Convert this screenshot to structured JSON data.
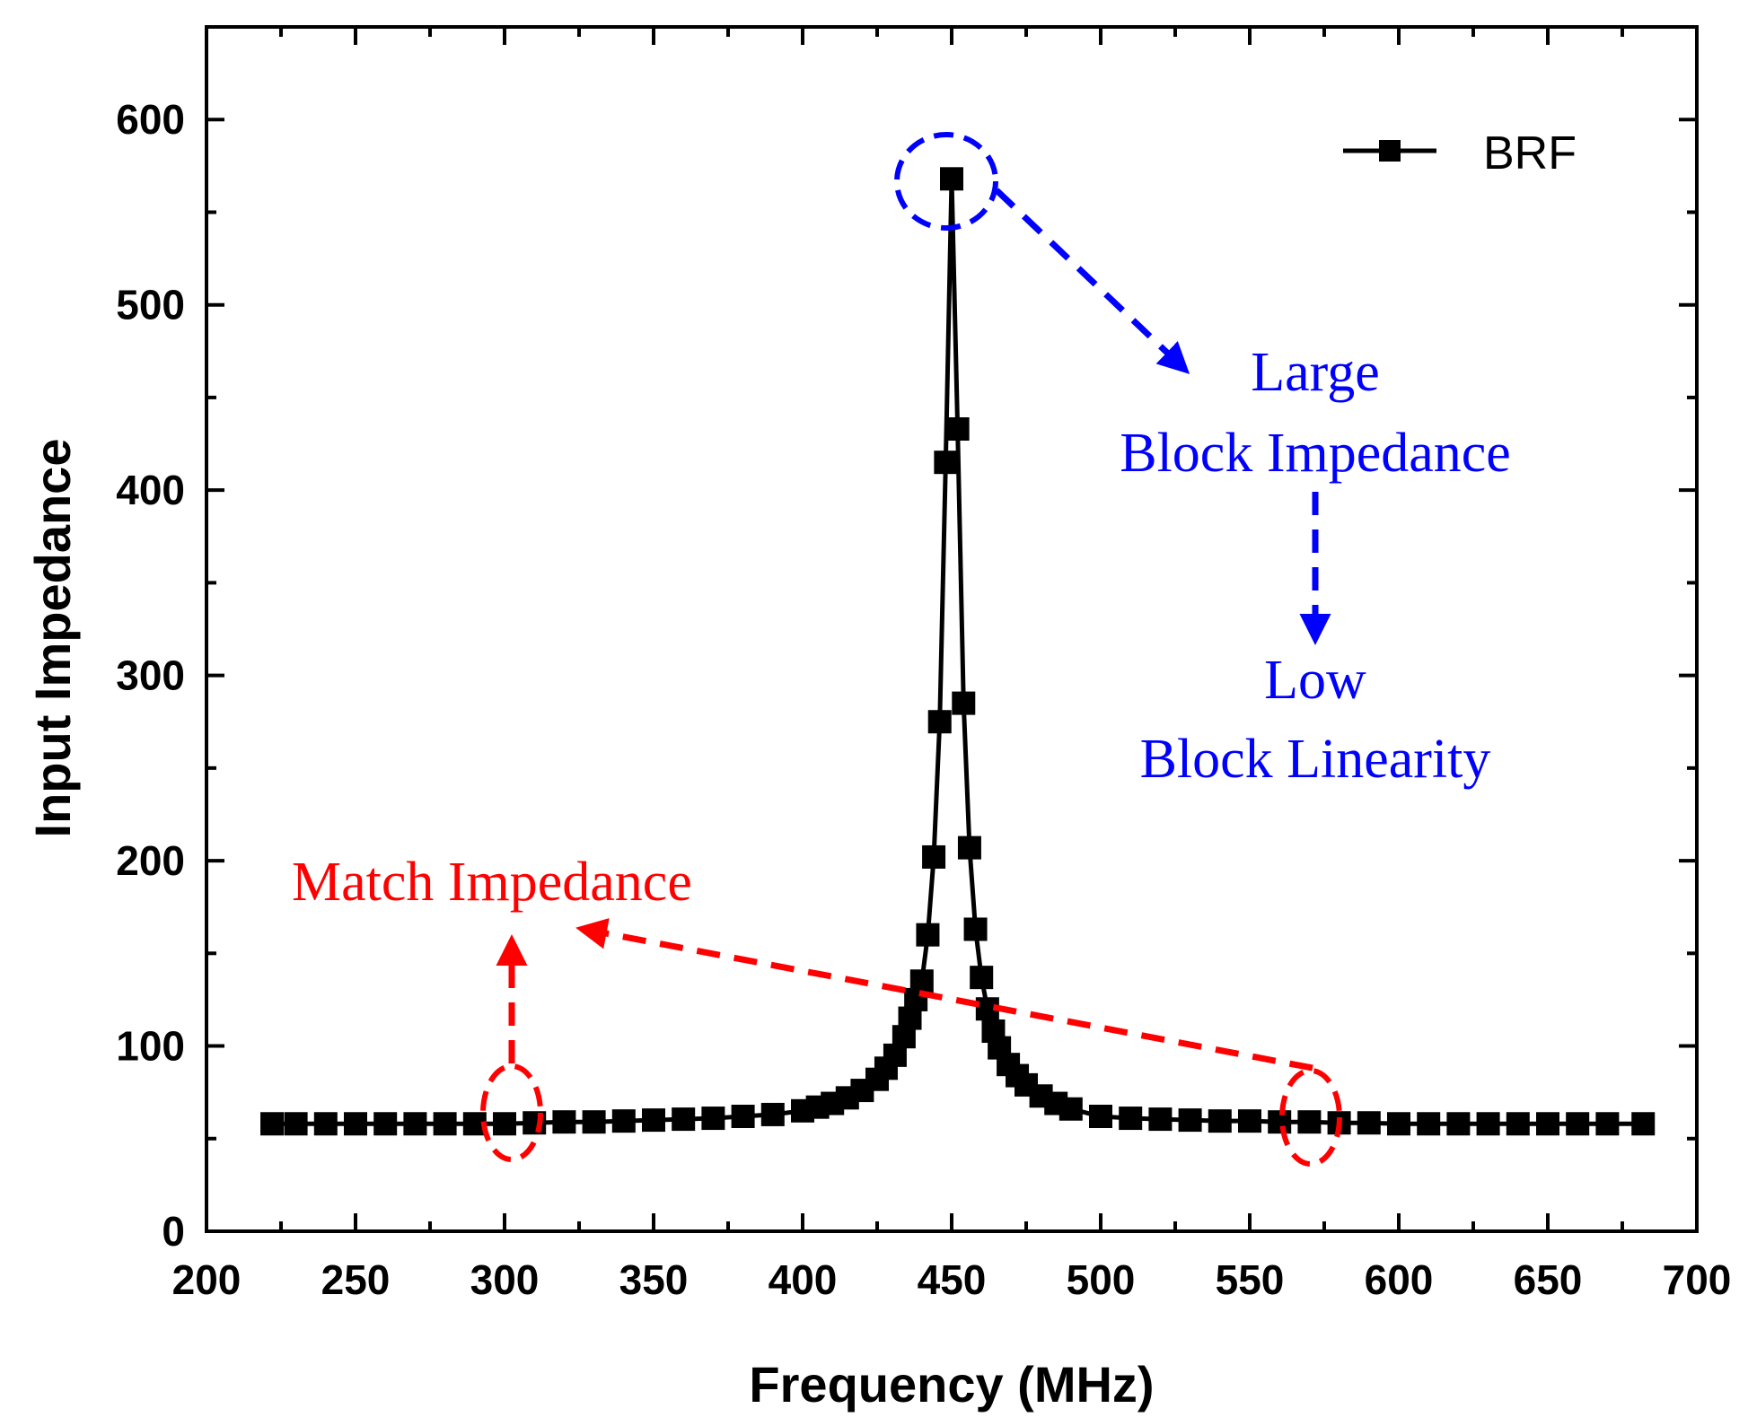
{
  "chart_data": {
    "type": "line",
    "title": "",
    "xlabel": "Frequency (MHz)",
    "ylabel": "Input Impedance",
    "xlim": [
      200,
      700
    ],
    "ylim": [
      0,
      650
    ],
    "xticks": [
      200,
      250,
      300,
      350,
      400,
      450,
      500,
      550,
      600,
      650,
      700
    ],
    "yticks": [
      0,
      100,
      200,
      300,
      400,
      500,
      600
    ],
    "xtick_labels": [
      "200",
      "250",
      "300",
      "350",
      "400",
      "450",
      "500",
      "550",
      "600",
      "650",
      "700"
    ],
    "ytick_labels": [
      "0",
      "100",
      "200",
      "300",
      "400",
      "500",
      "600"
    ],
    "grid": false,
    "legend_position": "top-right",
    "series": [
      {
        "name": "BRF",
        "color": "#000000",
        "marker": "square",
        "x": [
          222,
          230,
          240,
          250,
          260,
          270,
          280,
          290,
          300,
          310,
          320,
          330,
          340,
          350,
          360,
          370,
          380,
          390,
          400,
          405,
          410,
          415,
          420,
          425,
          428,
          431,
          434,
          436,
          438,
          440,
          442,
          444,
          446,
          448,
          450,
          452,
          454,
          456,
          458,
          460,
          462,
          464,
          466,
          469,
          472,
          475,
          480,
          485,
          490,
          500,
          510,
          520,
          530,
          540,
          550,
          560,
          570,
          580,
          590,
          600,
          610,
          620,
          630,
          640,
          650,
          660,
          670,
          682
        ],
        "y": [
          58,
          58,
          58,
          58,
          58,
          58,
          58,
          58,
          58,
          58.5,
          59,
          59,
          59.5,
          60,
          60.5,
          61,
          62,
          63,
          65,
          67,
          69,
          72,
          76,
          82,
          88,
          95,
          105,
          115,
          125,
          135,
          160,
          202,
          275,
          415,
          568,
          433,
          285,
          207,
          163,
          137,
          120,
          108,
          99,
          90,
          84,
          79,
          73,
          69,
          66,
          62,
          61,
          60.5,
          60,
          59.5,
          59.5,
          59,
          59,
          58.5,
          58.5,
          58,
          58,
          58,
          58,
          58,
          58,
          58,
          58,
          58
        ]
      }
    ],
    "annotations": {
      "large": "Large",
      "block_impedance": "Block Impedance",
      "low": "Low",
      "block_linearity": "Block Linearity",
      "match_impedance": "Match Impedance"
    },
    "colors": {
      "blue": "#0000ff",
      "red": "#ff0000",
      "series": "#000000"
    }
  }
}
